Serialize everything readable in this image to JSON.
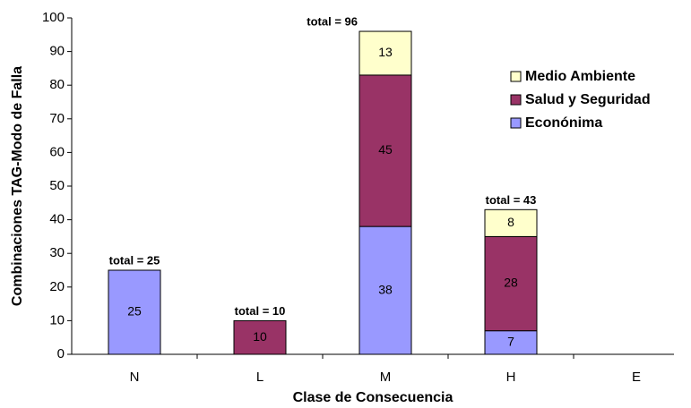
{
  "chart_data": {
    "type": "stacked-bar",
    "categories": [
      "N",
      "L",
      "M",
      "H",
      "E"
    ],
    "series": [
      {
        "name": "Econónima",
        "color": "#9999ff",
        "values": [
          25,
          null,
          38,
          7,
          null
        ]
      },
      {
        "name": "Salud y Seguridad",
        "color": "#993366",
        "values": [
          null,
          10,
          45,
          28,
          null
        ]
      },
      {
        "name": "Medio Ambiente",
        "color": "#ffffcc",
        "values": [
          null,
          null,
          13,
          8,
          null
        ]
      }
    ],
    "total_labels": [
      "total = 25",
      "total = 10",
      "total = 96",
      "total = 43",
      null
    ],
    "x_label": "Clase de Consecuencia",
    "y_label": "Combinaciones TAG-Modo de Falla",
    "ylim": [
      0,
      100
    ],
    "yticks": [
      0,
      10,
      20,
      30,
      40,
      50,
      60,
      70,
      80,
      90,
      100
    ],
    "legend": "upper right"
  }
}
